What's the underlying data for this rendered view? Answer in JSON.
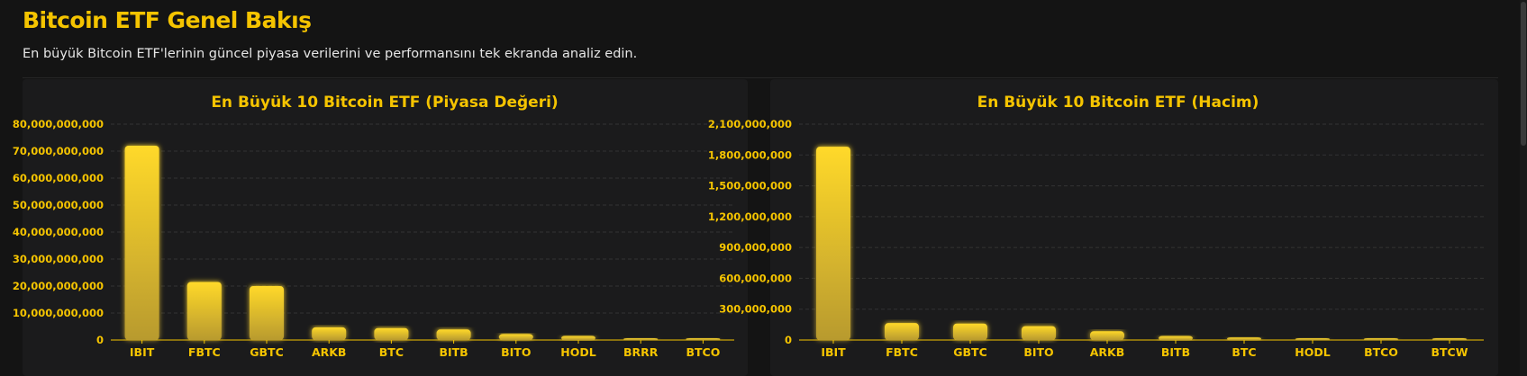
{
  "header": {
    "title": "Bitcoin ETF Genel Bakış",
    "subtitle": "En büyük Bitcoin ETF'lerinin güncel piyasa verilerini ve performansını tek ekranda analiz edin."
  },
  "colors": {
    "accent": "#f5c400",
    "bar_top": "#ffd92a",
    "bar_bottom": "#b89a2f",
    "background": "#141414",
    "panel": "#1b1b1c"
  },
  "chart_data": [
    {
      "type": "bar",
      "title": "En Büyük 10 Bitcoin ETF (Piyasa Değeri)",
      "categories": [
        "IBIT",
        "FBTC",
        "GBTC",
        "ARKB",
        "BTC",
        "BITB",
        "BITO",
        "HODL",
        "BRRR",
        "BTCO"
      ],
      "values": [
        72000000000,
        21500000000,
        20000000000,
        4700000000,
        4400000000,
        3900000000,
        2200000000,
        1500000000,
        650000000,
        500000000
      ],
      "ylim": [
        0,
        80000000000
      ],
      "yticks": [
        0,
        10000000000,
        20000000000,
        30000000000,
        40000000000,
        50000000000,
        60000000000,
        70000000000,
        80000000000
      ],
      "ytick_labels": [
        "0",
        "10,000,000,000",
        "20,000,000,000",
        "30,000,000,000",
        "40,000,000,000",
        "50,000,000,000",
        "60,000,000,000",
        "70,000,000,000",
        "80,000,000,000"
      ],
      "grid": true,
      "xlabel": "",
      "ylabel": ""
    },
    {
      "type": "bar",
      "title": "En Büyük 10 Bitcoin ETF (Hacim)",
      "categories": [
        "IBIT",
        "FBTC",
        "GBTC",
        "BITO",
        "ARKB",
        "BITB",
        "BTC",
        "HODL",
        "BTCO",
        "BTCW"
      ],
      "values": [
        1880000000,
        165000000,
        160000000,
        135000000,
        85000000,
        38000000,
        25000000,
        18000000,
        5000000,
        3000000
      ],
      "ylim": [
        0,
        2100000000
      ],
      "yticks": [
        0,
        300000000,
        600000000,
        900000000,
        1200000000,
        1500000000,
        1800000000,
        2100000000
      ],
      "ytick_labels": [
        "0",
        "300,000,000",
        "600,000,000",
        "900,000,000",
        "1,200,000,000",
        "1,500,000,000",
        "1,800,000,000",
        "2,100,000,000"
      ],
      "grid": true,
      "xlabel": "",
      "ylabel": ""
    }
  ]
}
